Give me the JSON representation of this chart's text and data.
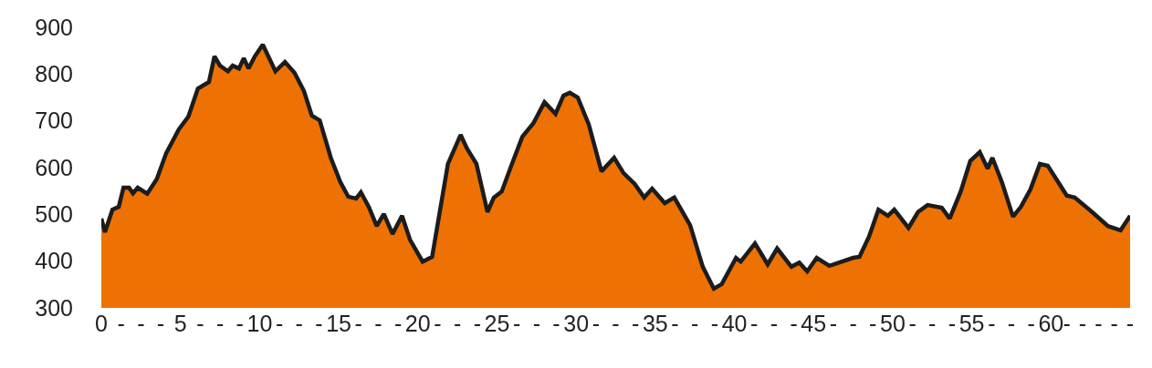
{
  "chart_data": {
    "type": "area",
    "x": [
      0,
      0.23,
      0.7,
      1.1,
      1.4,
      1.75,
      2.0,
      2.3,
      2.9,
      3.5,
      4.1,
      4.9,
      5.5,
      6.1,
      6.8,
      7.15,
      7.5,
      8.0,
      8.3,
      8.7,
      9.0,
      9.3,
      9.7,
      10.2,
      11.0,
      11.6,
      12.2,
      12.8,
      13.3,
      13.8,
      14.5,
      15.1,
      15.6,
      16.1,
      16.4,
      16.9,
      17.4,
      17.85,
      18.4,
      19.0,
      19.5,
      20.3,
      20.9,
      21.9,
      22.7,
      23.1,
      23.7,
      24.4,
      24.8,
      25.3,
      25.9,
      26.6,
      27.3,
      28.0,
      28.7,
      29.2,
      29.6,
      30.1,
      30.8,
      31.6,
      32.4,
      33.0,
      33.7,
      34.3,
      34.8,
      35.6,
      36.2,
      37.2,
      38.0,
      38.7,
      39.2,
      40.1,
      40.4,
      41.3,
      42.1,
      42.7,
      43.6,
      44.1,
      44.6,
      45.2,
      46.0,
      47.5,
      47.9,
      48.5,
      49.1,
      49.7,
      50.1,
      51.0,
      51.6,
      52.2,
      53.1,
      53.6,
      54.3,
      54.9,
      55.5,
      56.0,
      56.3,
      56.9,
      57.6,
      58.1,
      58.7,
      59.3,
      59.8,
      61.0,
      61.5,
      62.6,
      63.6,
      64.4,
      65
    ],
    "series": [
      {
        "color": "#ee7203",
        "values": [
          491,
          462,
          510,
          516,
          557,
          557,
          545,
          557,
          544,
          575,
          631,
          682,
          709,
          769,
          783,
          838,
          818,
          806,
          818,
          812,
          834,
          812,
          838,
          863,
          806,
          826,
          803,
          764,
          711,
          701,
          621,
          569,
          538,
          534,
          547,
          516,
          475,
          501,
          458,
          497,
          446,
          399,
          409,
          608,
          670,
          641,
          608,
          505,
          536,
          549,
          604,
          666,
          695,
          740,
          715,
          754,
          760,
          750,
          692,
          592,
          621,
          588,
          565,
          536,
          555,
          524,
          536,
          477,
          388,
          341,
          351,
          407,
          399,
          438,
          393,
          427,
          388,
          397,
          378,
          407,
          390,
          407,
          409,
          452,
          510,
          497,
          510,
          471,
          505,
          520,
          514,
          491,
          549,
          614,
          633,
          598,
          621,
          569,
          495,
          516,
          553,
          608,
          604,
          540,
          536,
          505,
          475,
          466,
          497
        ]
      }
    ],
    "xlim": [
      0,
      65
    ],
    "xticks": [
      0,
      {
        "value": 1.25,
        "label": "-"
      },
      {
        "value": 2.5,
        "label": "-"
      },
      {
        "value": 3.75,
        "label": "-"
      },
      5,
      {
        "value": 6.25,
        "label": "-"
      },
      {
        "value": 7.5,
        "label": "-"
      },
      {
        "value": 8.75,
        "label": "-"
      },
      10,
      {
        "value": 11.25,
        "label": "-"
      },
      {
        "value": 12.5,
        "label": "-"
      },
      {
        "value": 13.75,
        "label": "-"
      },
      15,
      {
        "value": 16.25,
        "label": "-"
      },
      {
        "value": 17.5,
        "label": "-"
      },
      {
        "value": 18.75,
        "label": "-"
      },
      20,
      {
        "value": 21.25,
        "label": "-"
      },
      {
        "value": 22.5,
        "label": "-"
      },
      {
        "value": 23.75,
        "label": "-"
      },
      25,
      {
        "value": 26.25,
        "label": "-"
      },
      {
        "value": 27.5,
        "label": "-"
      },
      {
        "value": 28.75,
        "label": "-"
      },
      30,
      {
        "value": 31.25,
        "label": "-"
      },
      {
        "value": 32.5,
        "label": "-"
      },
      {
        "value": 33.75,
        "label": "-"
      },
      35,
      {
        "value": 36.25,
        "label": "-"
      },
      {
        "value": 37.5,
        "label": "-"
      },
      {
        "value": 38.75,
        "label": "-"
      },
      40,
      {
        "value": 41.25,
        "label": "-"
      },
      {
        "value": 42.5,
        "label": "-"
      },
      {
        "value": 43.75,
        "label": "-"
      },
      45,
      {
        "value": 46.25,
        "label": "-"
      },
      {
        "value": 47.5,
        "label": "-"
      },
      {
        "value": 48.75,
        "label": "-"
      },
      50,
      {
        "value": 51.25,
        "label": "-"
      },
      {
        "value": 52.5,
        "label": "-"
      },
      {
        "value": 53.75,
        "label": "-"
      },
      55,
      {
        "value": 56.25,
        "label": "-"
      },
      {
        "value": 57.5,
        "label": "-"
      },
      {
        "value": 58.75,
        "label": "-"
      },
      60,
      {
        "value": 61,
        "label": "-"
      },
      {
        "value": 62,
        "label": "-"
      },
      {
        "value": 63,
        "label": "-"
      },
      {
        "value": 64,
        "label": "-"
      },
      {
        "value": 65,
        "label": "-"
      }
    ],
    "ylim": [
      300,
      900
    ],
    "yticks": [
      300,
      400,
      500,
      600,
      700,
      800,
      900
    ]
  }
}
